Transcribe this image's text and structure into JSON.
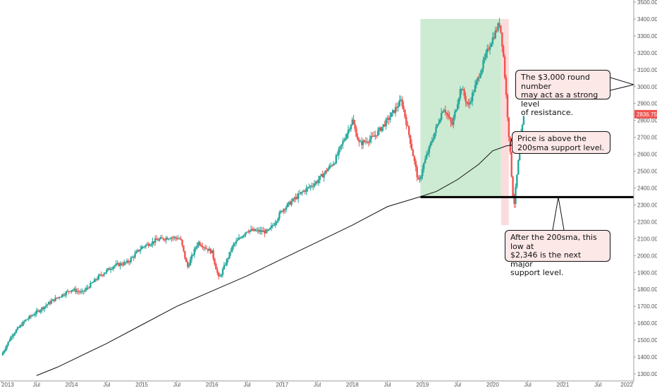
{
  "colors": {
    "up": "#26a69a",
    "down": "#ef5350",
    "sma": "#111111",
    "support_line": "#000000",
    "green_zone": "#cdebd2",
    "red_zone": "#fbdcdc",
    "callout_bg": "#fde8e8",
    "price_badge": "#ef5350"
  },
  "price_badge": {
    "value": 2836.75,
    "text": "2836.75"
  },
  "chart_data": {
    "type": "candlestick",
    "x_ticks": [
      "2013",
      "Jul",
      "2014",
      "Jul",
      "2015",
      "Jul",
      "2016",
      "Jul",
      "2017",
      "Jul",
      "2018",
      "Jul",
      "2019",
      "Jul",
      "2020",
      "Jul",
      "2021",
      "Jul",
      "2022"
    ],
    "y_ticks": [
      "1300.00",
      "1400.00",
      "1500.00",
      "1600.00",
      "1700.00",
      "1800.00",
      "1900.00",
      "2000.00",
      "2100.00",
      "2200.00",
      "2300.00",
      "2400.00",
      "2500.00",
      "2600.00",
      "2700.00",
      "2800.00",
      "2900.00",
      "3000.00",
      "3100.00",
      "3200.00",
      "3300.00",
      "3400.00",
      "3500.00"
    ],
    "ylim": [
      1290,
      3520
    ],
    "xlim": [
      2013.0,
      2022.0
    ],
    "price_path": [
      [
        2013.0,
        1410
      ],
      [
        2013.15,
        1530
      ],
      [
        2013.35,
        1620
      ],
      [
        2013.55,
        1680
      ],
      [
        2013.75,
        1740
      ],
      [
        2014.0,
        1800
      ],
      [
        2014.15,
        1780
      ],
      [
        2014.4,
        1880
      ],
      [
        2014.6,
        1940
      ],
      [
        2014.8,
        1960
      ],
      [
        2015.0,
        2050
      ],
      [
        2015.2,
        2090
      ],
      [
        2015.4,
        2110
      ],
      [
        2015.55,
        2100
      ],
      [
        2015.65,
        1930
      ],
      [
        2015.8,
        2080
      ],
      [
        2016.0,
        2020
      ],
      [
        2016.1,
        1860
      ],
      [
        2016.3,
        2060
      ],
      [
        2016.5,
        2150
      ],
      [
        2016.8,
        2140
      ],
      [
        2016.9,
        2200
      ],
      [
        2017.0,
        2270
      ],
      [
        2017.3,
        2380
      ],
      [
        2017.5,
        2440
      ],
      [
        2017.75,
        2560
      ],
      [
        2018.0,
        2800
      ],
      [
        2018.1,
        2660
      ],
      [
        2018.3,
        2700
      ],
      [
        2018.5,
        2800
      ],
      [
        2018.7,
        2920
      ],
      [
        2018.8,
        2730
      ],
      [
        2018.95,
        2420
      ],
      [
        2019.0,
        2520
      ],
      [
        2019.3,
        2880
      ],
      [
        2019.42,
        2770
      ],
      [
        2019.55,
        3000
      ],
      [
        2019.65,
        2880
      ],
      [
        2019.8,
        3060
      ],
      [
        2019.95,
        3240
      ],
      [
        2020.1,
        3380
      ],
      [
        2020.15,
        3200
      ],
      [
        2020.25,
        2600
      ],
      [
        2020.3,
        2280
      ],
      [
        2020.4,
        2700
      ],
      [
        2020.45,
        2836.75
      ]
    ],
    "sma_200": [
      [
        2013.5,
        1290
      ],
      [
        2013.8,
        1340
      ],
      [
        2014.0,
        1380
      ],
      [
        2014.5,
        1480
      ],
      [
        2015.0,
        1590
      ],
      [
        2015.5,
        1700
      ],
      [
        2016.0,
        1790
      ],
      [
        2016.5,
        1880
      ],
      [
        2017.0,
        1980
      ],
      [
        2017.5,
        2080
      ],
      [
        2018.0,
        2180
      ],
      [
        2018.5,
        2290
      ],
      [
        2018.95,
        2346
      ],
      [
        2019.2,
        2380
      ],
      [
        2019.5,
        2450
      ],
      [
        2019.8,
        2540
      ],
      [
        2020.0,
        2620
      ],
      [
        2020.2,
        2650
      ],
      [
        2020.45,
        2660
      ]
    ],
    "support_level": 2346,
    "green_zone": {
      "x_from": 2018.97,
      "x_to": 2020.12,
      "y_from": 2346,
      "y_to": 3400
    },
    "red_zone": {
      "x_from": 2020.12,
      "x_to": 2020.23,
      "y_from": 2180,
      "y_to": 3400
    }
  },
  "annotations": [
    {
      "id": "resistance",
      "lines": [
        "The $3,000 round number",
        "may act as a strong level",
        "of resistance."
      ]
    },
    {
      "id": "sma",
      "lines": [
        "Price is above the",
        "200sma support level."
      ]
    },
    {
      "id": "support",
      "lines": [
        "After the 200sma, this low at",
        "$2,346 is the next major",
        "support level."
      ]
    }
  ]
}
